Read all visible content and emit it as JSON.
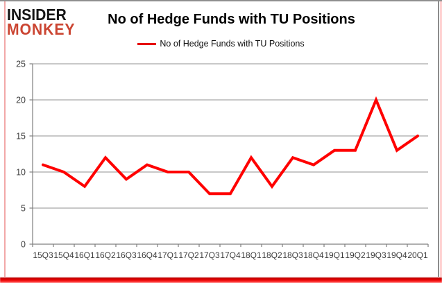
{
  "logo": {
    "line1": "INSIDER",
    "line2": "MONKEY"
  },
  "header": {
    "title": "No of Hedge Funds with TU Positions"
  },
  "legend": {
    "label": "No of Hedge Funds with TU Positions"
  },
  "chart_data": {
    "type": "line",
    "title": "No of Hedge Funds with TU Positions",
    "legend_entries": [
      "No of Hedge Funds with TU Positions"
    ],
    "legend_position": "top-center",
    "categories": [
      "15Q3",
      "15Q4",
      "16Q1",
      "16Q2",
      "16Q3",
      "16Q4",
      "17Q1",
      "17Q2",
      "17Q3",
      "17Q4",
      "18Q1",
      "18Q2",
      "18Q3",
      "18Q4",
      "19Q1",
      "19Q2",
      "19Q3",
      "19Q4",
      "20Q1"
    ],
    "values": [
      11,
      10,
      8,
      12,
      9,
      11,
      10,
      10,
      7,
      7,
      12,
      8,
      12,
      11,
      13,
      13,
      20,
      13,
      15
    ],
    "xlabel": "",
    "ylabel": "",
    "ylim": [
      0,
      25
    ],
    "yticks": [
      0,
      5,
      10,
      15,
      20,
      25
    ],
    "grid": true,
    "line_color": "#ff0000"
  },
  "colors": {
    "line": "#ff0000",
    "logo_red": "#cb4532",
    "grid": "#a6a6a6",
    "axis": "#7f7f7f",
    "tick_text": "#3d3d3d",
    "border_red": "#e00000"
  }
}
